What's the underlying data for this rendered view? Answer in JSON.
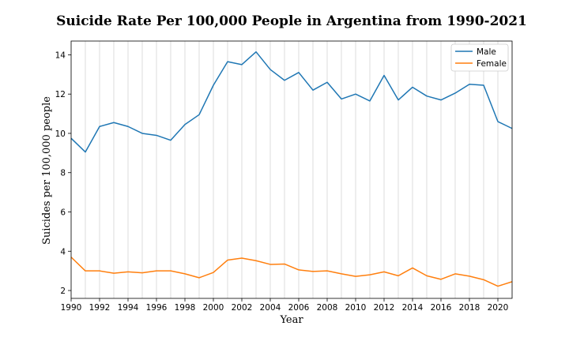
{
  "chart_data": {
    "type": "line",
    "title": "Suicide Rate Per 100,000 People in Argentina from 1990-2021",
    "xlabel": "Year",
    "ylabel": "Suicides per 100,000 people",
    "x": [
      1990,
      1991,
      1992,
      1993,
      1994,
      1995,
      1996,
      1997,
      1998,
      1999,
      2000,
      2001,
      2002,
      2003,
      2004,
      2005,
      2006,
      2007,
      2008,
      2009,
      2010,
      2011,
      2012,
      2013,
      2014,
      2015,
      2016,
      2017,
      2018,
      2019,
      2020,
      2021
    ],
    "xlim": [
      1990,
      2021
    ],
    "ylim": [
      1.6,
      14.7
    ],
    "x_ticks": [
      1990,
      1992,
      1994,
      1996,
      1998,
      2000,
      2002,
      2004,
      2006,
      2008,
      2010,
      2012,
      2014,
      2016,
      2018,
      2020
    ],
    "y_ticks": [
      2,
      4,
      6,
      8,
      10,
      12,
      14
    ],
    "grid": "vertical",
    "legend_position": "top-right",
    "series": [
      {
        "name": "Male",
        "color": "#1f77b4",
        "values": [
          9.75,
          9.05,
          10.35,
          10.55,
          10.35,
          10.0,
          9.9,
          9.65,
          10.45,
          10.95,
          12.45,
          13.65,
          13.5,
          14.15,
          13.25,
          12.7,
          13.1,
          12.2,
          12.6,
          11.75,
          12.0,
          11.65,
          12.95,
          11.7,
          12.35,
          11.9,
          11.7,
          12.05,
          12.5,
          12.45,
          10.6,
          10.25
        ]
      },
      {
        "name": "Female",
        "color": "#ff7f0e",
        "values": [
          3.7,
          3.0,
          3.0,
          2.88,
          2.95,
          2.9,
          3.0,
          3.0,
          2.85,
          2.65,
          2.92,
          3.55,
          3.65,
          3.52,
          3.33,
          3.35,
          3.05,
          2.97,
          3.0,
          2.85,
          2.72,
          2.8,
          2.95,
          2.75,
          3.15,
          2.75,
          2.57,
          2.85,
          2.73,
          2.55,
          2.22,
          2.45
        ]
      }
    ]
  }
}
